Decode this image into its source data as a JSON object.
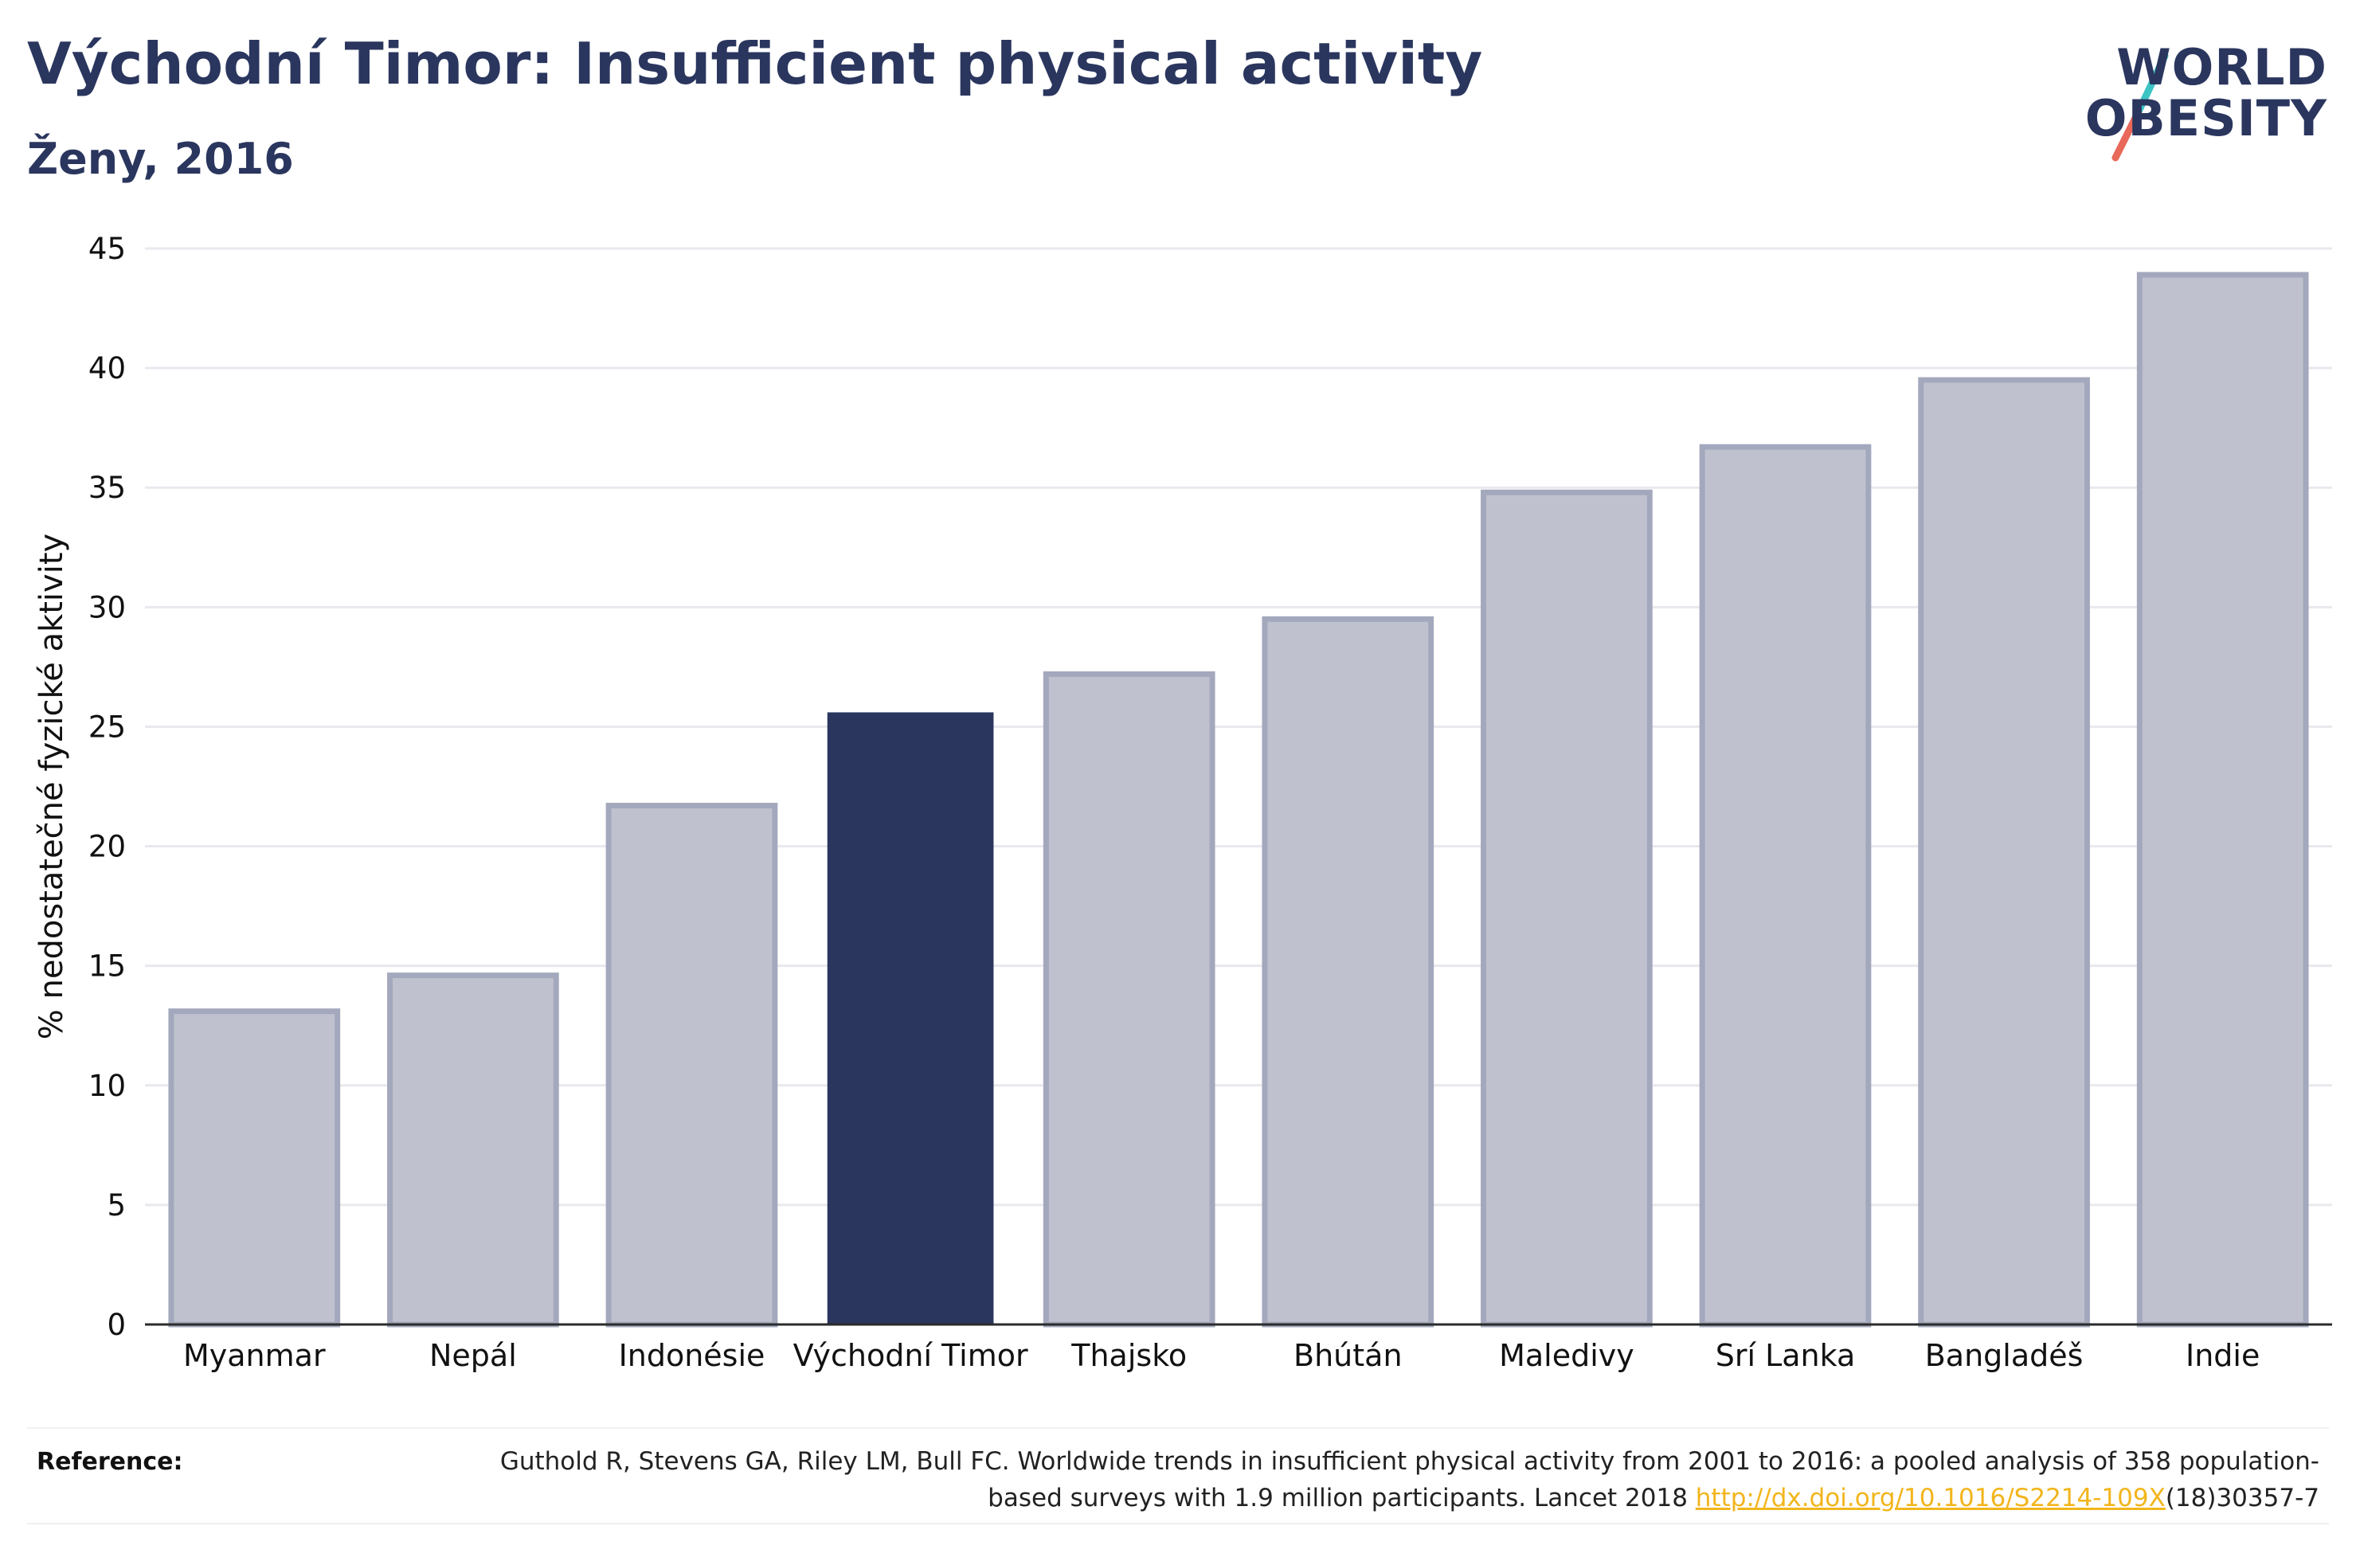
{
  "header": {
    "title": "Východní Timor: Insufficient physical activity",
    "subtitle": "Ženy, 2016"
  },
  "logo": {
    "line1": "WORLD",
    "line2": "OBESITY",
    "accent_colors": [
      "#3cc4c4",
      "#e8685a"
    ]
  },
  "chart_data": {
    "type": "bar",
    "title": "Východní Timor: Insufficient physical activity",
    "subtitle": "Ženy, 2016",
    "xlabel": "",
    "ylabel": "% nedostatečné fyzické aktivity",
    "ylim": [
      0,
      45
    ],
    "yticks": [
      0,
      5,
      10,
      15,
      20,
      25,
      30,
      35,
      40,
      45
    ],
    "grid": true,
    "categories": [
      "Myanmar",
      "Nepál",
      "Indonésie",
      "Východní Timor",
      "Thajsko",
      "Bhútán",
      "Maledivy",
      "Srí Lanka",
      "Bangladéš",
      "Indie"
    ],
    "values": [
      13.1,
      14.6,
      21.7,
      25.6,
      27.2,
      29.5,
      34.8,
      36.7,
      39.5,
      43.9
    ],
    "highlight": "Východní Timor",
    "colors": {
      "bar": "#bfc2ce",
      "bar_border": "#a3a8bd",
      "highlight": "#2a365e",
      "grid": "#e8e9ee",
      "axis": "#2b2b2b"
    }
  },
  "reference": {
    "label": "Reference:",
    "text_before": "Guthold R, Stevens GA, Riley LM, Bull FC. Worldwide trends in insufficient physical activity from 2001 to 2016: a pooled analysis of 358 population-based surveys with 1.9 million participants. Lancet 2018 ",
    "link": "http://dx.doi.org/10.1016/S2214-109X",
    "text_after": "(18)30357-7"
  }
}
